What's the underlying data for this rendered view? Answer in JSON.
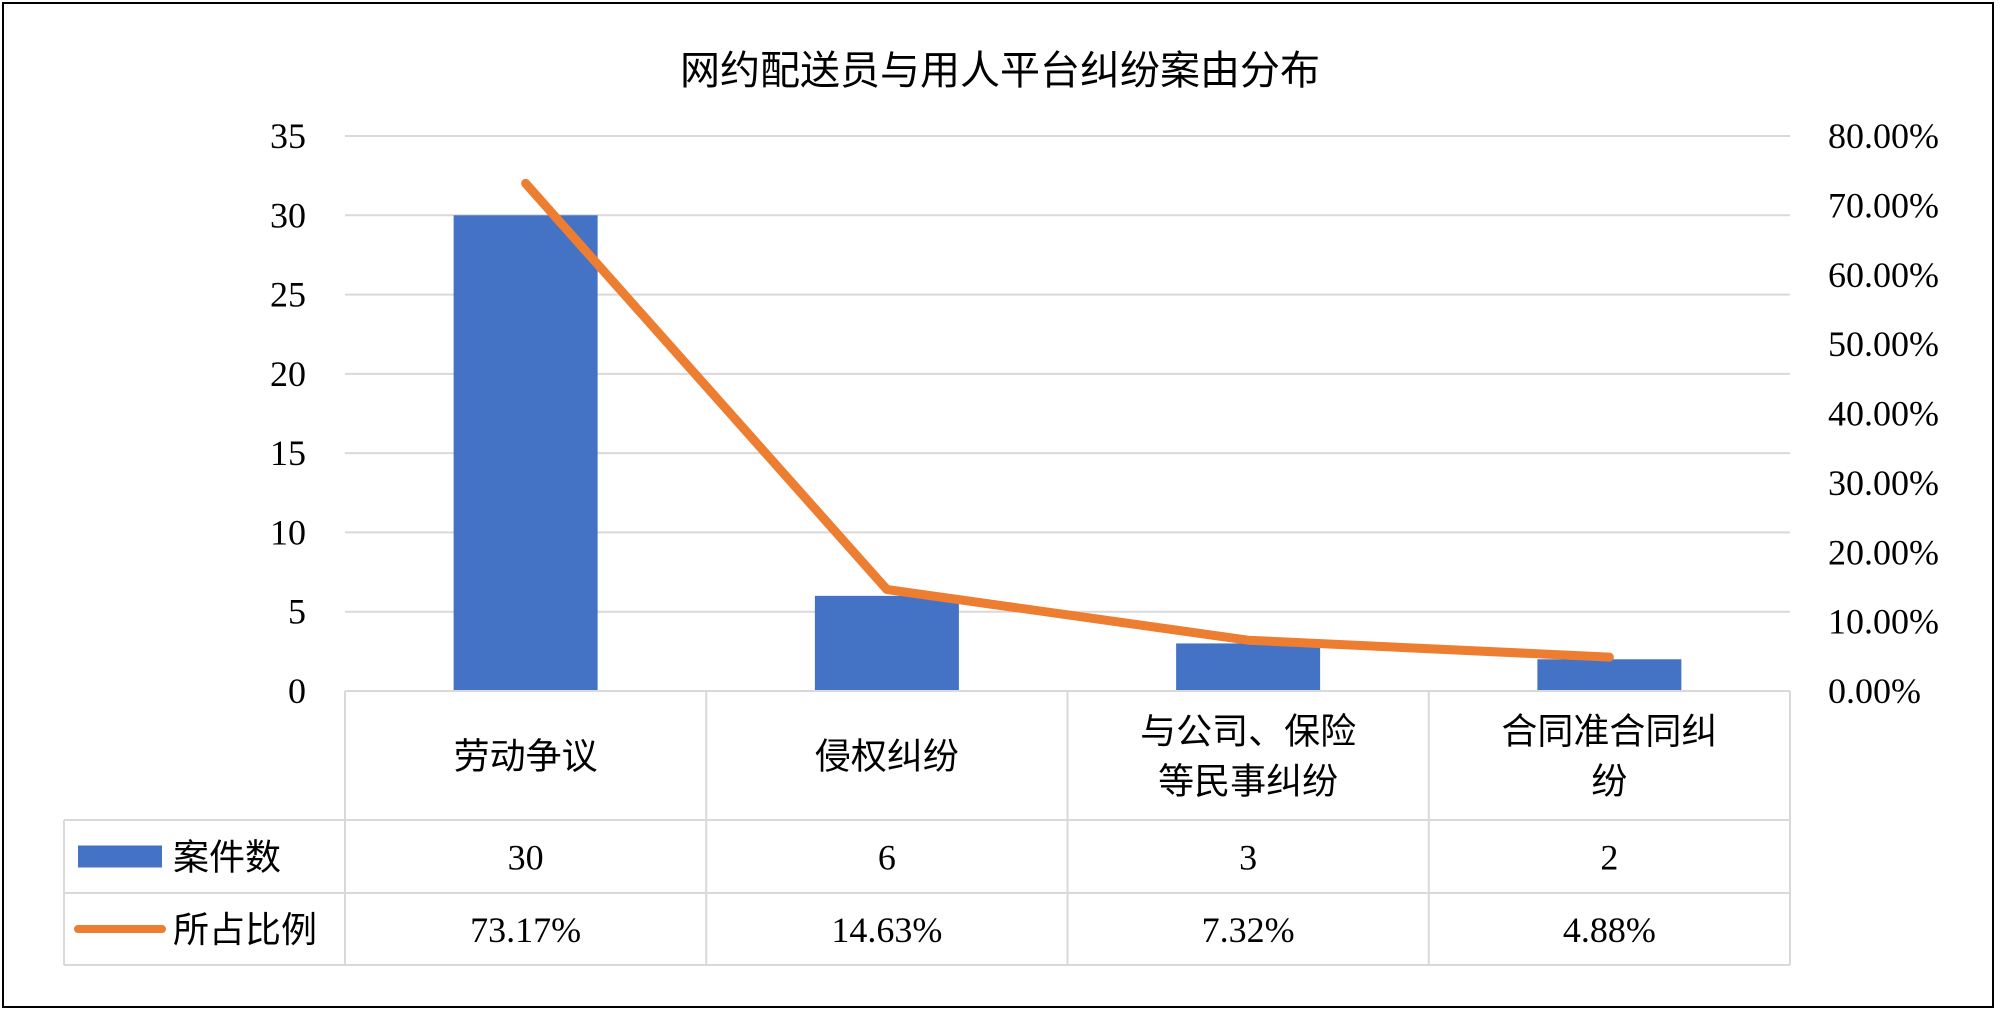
{
  "chart_data": {
    "type": "bar",
    "title": "网约配送员与用人平台纠纷案由分布",
    "categories": [
      "劳动争议",
      "侵权纠纷",
      "与公司、保险等民事纠纷",
      "合同准合同纠纷"
    ],
    "category_lines": [
      [
        "劳动争议"
      ],
      [
        "侵权纠纷"
      ],
      [
        "与公司、保险",
        "等民事纠纷"
      ],
      [
        "合同准合同纠",
        "纷"
      ]
    ],
    "series": [
      {
        "name": "案件数",
        "type": "bar",
        "axis": "left",
        "color": "#4472C4",
        "values": [
          30,
          6,
          3,
          2
        ],
        "labels": [
          "30",
          "6",
          "3",
          "2"
        ]
      },
      {
        "name": "所占比例",
        "type": "line",
        "axis": "right",
        "color": "#ED7D31",
        "values": [
          73.17,
          14.63,
          7.32,
          4.88
        ],
        "labels": [
          "73.17%",
          "14.63%",
          "7.32%",
          "4.88%"
        ]
      }
    ],
    "y_left": {
      "min": 0,
      "max": 35,
      "ticks": [
        "0",
        "5",
        "10",
        "15",
        "20",
        "25",
        "30",
        "35"
      ]
    },
    "y_right": {
      "min": 0,
      "max": 80,
      "ticks": [
        "0.00%",
        "10.00%",
        "20.00%",
        "30.00%",
        "40.00%",
        "50.00%",
        "60.00%",
        "70.00%",
        "80.00%"
      ]
    },
    "grid": true,
    "legend": "data-table",
    "gridline_color": "#D9D9D9"
  }
}
